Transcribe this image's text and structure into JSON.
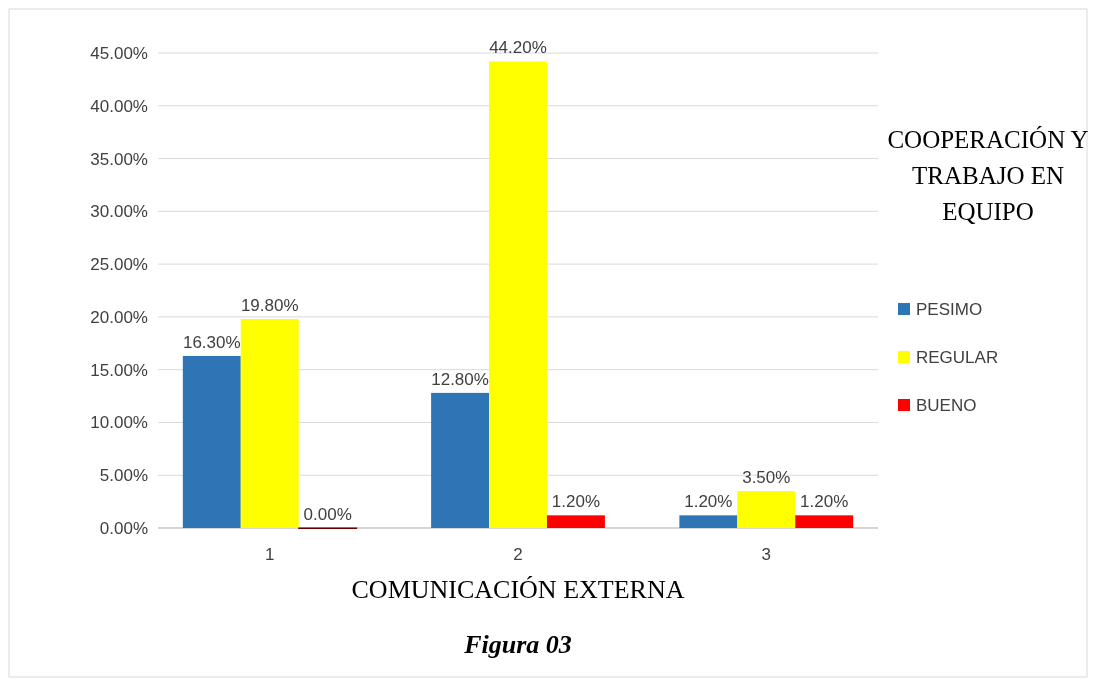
{
  "chart_data": {
    "type": "bar",
    "xlabel": "COMUNICACIÓN EXTERNA",
    "legend_title": "COOPERACIÓN Y TRABAJO EN EQUIPO",
    "categories": [
      "1",
      "2",
      "3"
    ],
    "series": [
      {
        "name": "PESIMO",
        "color": "#2e75b6",
        "values": [
          16.3,
          12.8,
          1.2
        ],
        "value_labels": [
          "16.30%",
          "12.80%",
          "1.20%"
        ]
      },
      {
        "name": "REGULAR",
        "color": "#ffff00",
        "values": [
          19.8,
          44.2,
          3.5
        ],
        "value_labels": [
          "19.80%",
          "44.20%",
          "3.50%"
        ]
      },
      {
        "name": "BUENO",
        "color": "#ff0000",
        "values": [
          0,
          1.2,
          1.2
        ],
        "value_labels": [
          "0.00%",
          "1.20%",
          "1.20%"
        ]
      }
    ],
    "ylim": [
      0,
      45
    ],
    "yticks": [
      {
        "value": 0,
        "label": "0.00%"
      },
      {
        "value": 5,
        "label": "5.00%"
      },
      {
        "value": 10,
        "label": "10.00%"
      },
      {
        "value": 15,
        "label": "15.00%"
      },
      {
        "value": 20,
        "label": "20.00%"
      },
      {
        "value": 25,
        "label": "25.00%"
      },
      {
        "value": 30,
        "label": "30.00%"
      },
      {
        "value": 35,
        "label": "35.00%"
      },
      {
        "value": 40,
        "label": "40.00%"
      },
      {
        "value": 45,
        "label": "45.00%"
      }
    ],
    "grid": "y",
    "legend": "right",
    "annotations": [
      "Figura 03"
    ]
  }
}
